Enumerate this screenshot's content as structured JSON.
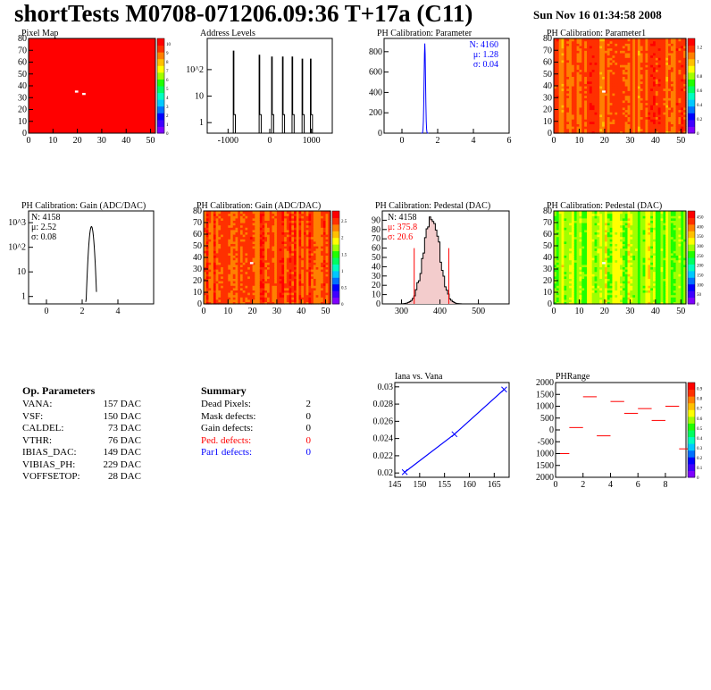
{
  "header": {
    "title": "shortTests M0708-071206.09:36 T+17a (C11)",
    "date": "Sun Nov 16 01:34:58 2008"
  },
  "colors": {
    "red": "#ff0000",
    "blue": "#0000ff",
    "palette": [
      "#7f00ff",
      "#3f00ff",
      "#0000ff",
      "#0070ff",
      "#00c8ff",
      "#00ffc0",
      "#00ff60",
      "#20ff00",
      "#a0ff00",
      "#ffff00",
      "#ffc000",
      "#ff8000",
      "#ff3000",
      "#ff0000"
    ]
  },
  "op_parameters": {
    "title": "Op. Parameters",
    "rows": [
      {
        "name": "VANA:",
        "value": "157 DAC"
      },
      {
        "name": "VSF:",
        "value": "150 DAC"
      },
      {
        "name": "CALDEL:",
        "value": "73 DAC"
      },
      {
        "name": "VTHR:",
        "value": "76 DAC"
      },
      {
        "name": "IBIAS_DAC:",
        "value": "149 DAC"
      },
      {
        "name": "VIBIAS_PH:",
        "value": "229 DAC"
      },
      {
        "name": "VOFFSETOP:",
        "value": "28 DAC"
      }
    ]
  },
  "summary": {
    "title": "Summary",
    "rows": [
      {
        "name": "Dead Pixels:",
        "value": "2",
        "color": "#000000"
      },
      {
        "name": "Mask defects:",
        "value": "0",
        "color": "#000000"
      },
      {
        "name": "Gain defects:",
        "value": "0",
        "color": "#000000"
      },
      {
        "name": "Ped. defects:",
        "value": "0",
        "color": "#ff0000"
      },
      {
        "name": "Par1 defects:",
        "value": "0",
        "color": "#0000ff"
      }
    ]
  },
  "chart_data": [
    {
      "id": "pixel-map",
      "type": "heatmap",
      "title": "Pixel Map",
      "xlim": [
        0,
        52
      ],
      "ylim": [
        0,
        80
      ],
      "xticks": [
        "0",
        "10",
        "20",
        "30",
        "40",
        "50"
      ],
      "yticks": [
        "0",
        "10",
        "20",
        "30",
        "40",
        "50",
        "60",
        "70",
        "80"
      ],
      "zticks": [
        "0",
        "1",
        "2",
        "3",
        "4",
        "5",
        "6",
        "7",
        "8",
        "9",
        "10"
      ],
      "fill": "#ff0000",
      "dead_pixels": [
        [
          19,
          35
        ],
        [
          22,
          33
        ]
      ]
    },
    {
      "id": "address-levels",
      "type": "line",
      "title": "Address Levels",
      "log_y": true,
      "xlim": [
        -1500,
        1500
      ],
      "xticks": [
        "-1000",
        "0",
        "1000"
      ],
      "yticks": [
        "1",
        "10",
        "10^2"
      ],
      "peaks": [
        -850,
        -230,
        70,
        330,
        560,
        800,
        1000
      ]
    },
    {
      "id": "ph-param",
      "type": "line",
      "title": "PH Calibration: Parameter",
      "xlim": [
        -1,
        6
      ],
      "ylim": [
        0,
        930
      ],
      "xticks": [
        "0",
        "2",
        "4",
        "6"
      ],
      "yticks": [
        "0",
        "200",
        "400",
        "600",
        "800"
      ],
      "stats": {
        "N": "N: 4160",
        "mean": "μ: 1.28",
        "sigma": "σ: 0.04"
      },
      "peak_x": 1.28,
      "peak_y": 880
    },
    {
      "id": "ph-param1",
      "type": "heatmap",
      "title": "PH Calibration: Parameter1",
      "xlim": [
        0,
        52
      ],
      "ylim": [
        0,
        80
      ],
      "xticks": [
        "0",
        "10",
        "20",
        "30",
        "40",
        "50"
      ],
      "yticks": [
        "0",
        "10",
        "20",
        "30",
        "40",
        "50",
        "60",
        "70",
        "80"
      ],
      "zticks": [
        "0",
        "0.2",
        "0.4",
        "0.6",
        "0.8",
        "1",
        "1.2"
      ]
    },
    {
      "id": "ph-gain-hist",
      "type": "line",
      "title": "PH Calibration: Gain (ADC/DAC)",
      "log_y": true,
      "xlim": [
        -1,
        6
      ],
      "xticks": [
        "0",
        "2",
        "4"
      ],
      "yticks": [
        "1",
        "10",
        "10^2",
        "10^3"
      ],
      "stats": {
        "N": "N: 4158",
        "mean": "μ: 2.52",
        "sigma": "σ: 0.08"
      },
      "peak_x": 2.52
    },
    {
      "id": "ph-gain-map",
      "type": "heatmap",
      "title": "PH Calibration: Gain (ADC/DAC)",
      "xlim": [
        0,
        52
      ],
      "ylim": [
        0,
        80
      ],
      "xticks": [
        "0",
        "10",
        "20",
        "30",
        "40",
        "50"
      ],
      "yticks": [
        "0",
        "10",
        "20",
        "30",
        "40",
        "50",
        "60",
        "70",
        "80"
      ],
      "zticks": [
        "0",
        "0.5",
        "1",
        "1.5",
        "2",
        "2.5"
      ]
    },
    {
      "id": "ph-ped-hist",
      "type": "line",
      "title": "PH Calibration: Pedestal (DAC)",
      "xlim": [
        250,
        580
      ],
      "ylim": [
        0,
        100
      ],
      "xticks": [
        "300",
        "400",
        "500"
      ],
      "yticks": [
        "0",
        "10",
        "20",
        "30",
        "40",
        "50",
        "60",
        "70",
        "80",
        "90"
      ],
      "stats": {
        "N": "N: 4158",
        "mean": "μ: 375.8",
        "sigma": "σ: 20.6"
      },
      "mean": 375.8,
      "sigma": 20.6,
      "cut_lines": [
        333,
        423
      ]
    },
    {
      "id": "ph-ped-map",
      "type": "heatmap",
      "title": "PH Calibration: Pedestal (DAC)",
      "xlim": [
        0,
        52
      ],
      "ylim": [
        0,
        80
      ],
      "xticks": [
        "0",
        "10",
        "20",
        "30",
        "40",
        "50"
      ],
      "yticks": [
        "0",
        "10",
        "20",
        "30",
        "40",
        "50",
        "60",
        "70",
        "80"
      ],
      "zticks": [
        "0",
        "50",
        "100",
        "150",
        "200",
        "250",
        "300",
        "350",
        "400",
        "450"
      ]
    },
    {
      "id": "iana-vana",
      "type": "line",
      "title": "Iana vs. Vana",
      "x": [
        147,
        157,
        167
      ],
      "y": [
        0.0201,
        0.0245,
        0.0297
      ],
      "xlim": [
        145,
        168
      ],
      "ylim": [
        0.0195,
        0.0305
      ],
      "xticks": [
        "145",
        "150",
        "155",
        "160",
        "165"
      ],
      "yticks": [
        "0.02",
        "0.022",
        "0.024",
        "0.026",
        "0.028",
        "0.03"
      ]
    },
    {
      "id": "ph-range",
      "type": "scatter",
      "title": "PHRange",
      "x": [
        0.5,
        1.5,
        2.5,
        3.5,
        4.5,
        5.5,
        6.5,
        7.5,
        8.5,
        9.5
      ],
      "y": [
        -1000,
        100,
        1400,
        -250,
        1200,
        700,
        900,
        400,
        1000,
        -800
      ],
      "xlim": [
        0,
        9.5
      ],
      "ylim": [
        -2000,
        2000
      ],
      "xticks": [
        "0",
        "2",
        "4",
        "6",
        "8"
      ],
      "yticks": [
        "2000",
        "1500",
        "1000",
        "500",
        "0",
        "-500",
        "1000",
        "1500",
        "2000"
      ],
      "zticks": [
        "0",
        "0.1",
        "0.2",
        "0.3",
        "0.4",
        "0.5",
        "0.6",
        "0.7",
        "0.8",
        "0.9"
      ]
    }
  ]
}
